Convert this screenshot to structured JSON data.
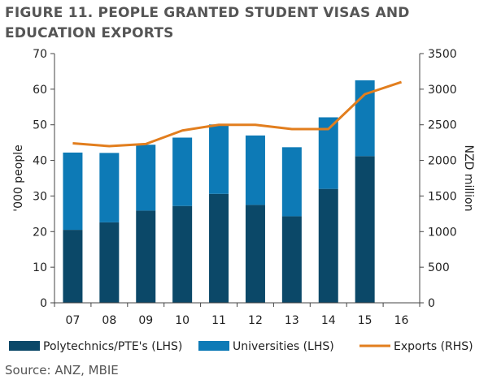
{
  "title_lines": [
    "FIGURE 11. PEOPLE GRANTED STUDENT VISAS AND",
    "EDUCATION EXPORTS"
  ],
  "source": "Source: ANZ, MBIE",
  "colors": {
    "poly": "#0b4868",
    "uni": "#0d7ab6",
    "exports": "#e27e1e",
    "axis": "#444444",
    "title": "#555555"
  },
  "chart_data": {
    "type": "bar",
    "stacked": true,
    "categories": [
      "07",
      "08",
      "09",
      "10",
      "11",
      "12",
      "13",
      "14",
      "15",
      "16"
    ],
    "ylabel_left": "'000 people",
    "ylabel_right": "NZD million",
    "ylim_left": [
      0,
      70
    ],
    "ylim_right": [
      0,
      3500
    ],
    "yticks_left": [
      0,
      10,
      20,
      30,
      40,
      50,
      60,
      70
    ],
    "yticks_right": [
      0,
      500,
      1000,
      1500,
      2000,
      2500,
      3000,
      3500
    ],
    "grid": false,
    "legend_position": "bottom",
    "series": [
      {
        "name": "Polytechnics/PTE's (LHS)",
        "kind": "bar",
        "axis": "left",
        "values": [
          20.5,
          22.6,
          25.9,
          27.2,
          30.6,
          27.5,
          24.3,
          32.0,
          41.2,
          null
        ]
      },
      {
        "name": "Universities (LHS)",
        "kind": "bar",
        "axis": "left",
        "values": [
          21.7,
          19.5,
          18.5,
          19.2,
          19.5,
          19.5,
          19.4,
          20.1,
          21.3,
          null
        ]
      },
      {
        "name": "Exports (RHS)",
        "kind": "line",
        "axis": "right",
        "values": [
          2240,
          2200,
          2230,
          2420,
          2500,
          2500,
          2440,
          2440,
          2930,
          3100
        ]
      }
    ]
  }
}
